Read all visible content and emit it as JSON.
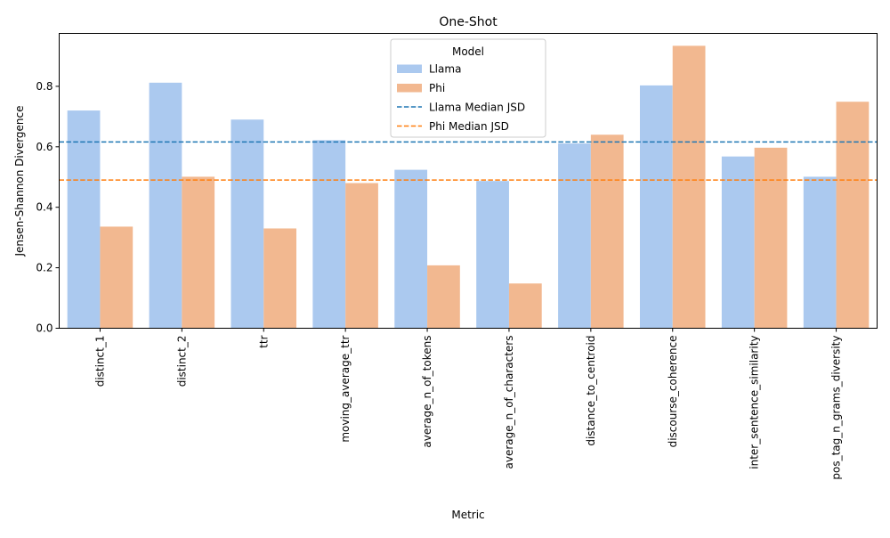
{
  "chart_data": {
    "type": "bar",
    "title": "One-Shot",
    "xlabel": "Metric",
    "ylabel": "Jensen-Shannon Divergence",
    "ylim": [
      0,
      0.975
    ],
    "yticks": [
      "0.0",
      "0.2",
      "0.4",
      "0.6",
      "0.8"
    ],
    "ytick_values": [
      0,
      0.2,
      0.4,
      0.6,
      0.8
    ],
    "categories": [
      "distinct_1",
      "distinct_2",
      "ttr",
      "moving_average_ttr",
      "average_n_of_tokens",
      "average_n_of_characters",
      "distance_to_centroid",
      "discourse_coherence",
      "inter_sentence_similarity",
      "pos_tag_n_grams_diversity"
    ],
    "series": [
      {
        "name": "Llama",
        "color": "#abc9ef",
        "values": [
          0.72,
          0.812,
          0.69,
          0.622,
          0.524,
          0.487,
          0.611,
          0.803,
          0.568,
          0.501
        ]
      },
      {
        "name": "Phi",
        "color": "#f2b890",
        "values": [
          0.336,
          0.501,
          0.33,
          0.48,
          0.208,
          0.148,
          0.64,
          0.934,
          0.597,
          0.749
        ]
      }
    ],
    "reference_lines": [
      {
        "name": "Llama Median JSD",
        "value": 0.616,
        "color": "#1f77b4",
        "style": "dashed"
      },
      {
        "name": "Phi Median JSD",
        "value": 0.49,
        "color": "#ff7f0e",
        "style": "dashed"
      }
    ],
    "legend": {
      "title": "Model",
      "placement": "top-center"
    },
    "grid": false
  }
}
